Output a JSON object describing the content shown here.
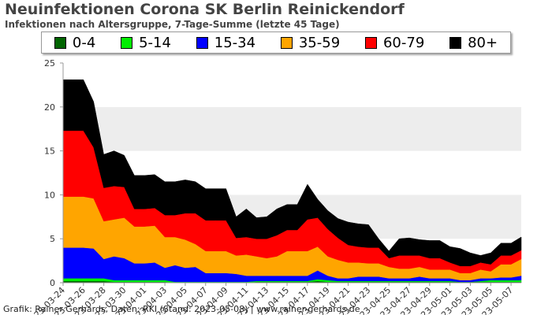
{
  "header": {
    "title": "Neuinfektionen Corona SK Berlin Reinickendorf",
    "subtitle": "Infektionen nach Altersgruppe, 7-Tage-Summe (letzte 45 Tage)"
  },
  "footer": "Grafik: Rainer Gerhards, Daten: RKI (Stand: 2023-05-08) | www.rainer-gerhards.de",
  "chart_data": {
    "type": "area",
    "stacked": true,
    "legend_position": "top",
    "grid": true,
    "ylim": [
      0,
      25
    ],
    "yticks": [
      0,
      5,
      10,
      15,
      20,
      25
    ],
    "x": [
      "2023-03-24",
      "2023-03-25",
      "2023-03-26",
      "2023-03-27",
      "2023-03-28",
      "2023-03-29",
      "2023-03-30",
      "2023-03-31",
      "2023-04-01",
      "2023-04-02",
      "2023-04-03",
      "2023-04-04",
      "2023-04-05",
      "2023-04-06",
      "2023-04-07",
      "2023-04-08",
      "2023-04-09",
      "2023-04-10",
      "2023-04-11",
      "2023-04-12",
      "2023-04-13",
      "2023-04-14",
      "2023-04-15",
      "2023-04-16",
      "2023-04-17",
      "2023-04-18",
      "2023-04-19",
      "2023-04-20",
      "2023-04-21",
      "2023-04-22",
      "2023-04-23",
      "2023-04-24",
      "2023-04-25",
      "2023-04-26",
      "2023-04-27",
      "2023-04-28",
      "2023-04-29",
      "2023-04-30",
      "2023-05-01",
      "2023-05-02",
      "2023-05-03",
      "2023-05-04",
      "2023-05-05",
      "2023-05-06",
      "2023-05-07",
      "2023-05-08"
    ],
    "xtick_labels": [
      "23-03-24",
      "23-03-26",
      "23-03-28",
      "23-03-30",
      "23-04-01",
      "23-04-03",
      "23-04-05",
      "23-04-07",
      "23-04-09",
      "23-04-11",
      "23-04-13",
      "23-04-15",
      "23-04-17",
      "23-04-19",
      "23-04-21",
      "23-04-23",
      "23-04-25",
      "23-04-27",
      "23-04-29",
      "23-05-01",
      "23-05-03",
      "23-05-05",
      "23-05-07"
    ],
    "series": [
      {
        "name": "0-4",
        "color": "#006400",
        "values": [
          0.2,
          0.2,
          0.2,
          0.2,
          0.2,
          0.1,
          0.1,
          0.1,
          0.1,
          0.1,
          0.1,
          0,
          0,
          0,
          0,
          0,
          0,
          0,
          0,
          0.1,
          0.1,
          0.1,
          0.1,
          0.1,
          0.1,
          0.2,
          0.1,
          0.1,
          0.1,
          0.1,
          0.1,
          0.1,
          0.1,
          0.1,
          0.1,
          0.1,
          0.1,
          0.1,
          0.1,
          0.1,
          0.1,
          0.1,
          0.1,
          0.1,
          0.1,
          0.1
        ]
      },
      {
        "name": "5-14",
        "color": "#00ee00",
        "values": [
          0.3,
          0.3,
          0.3,
          0.3,
          0.3,
          0.2,
          0.2,
          0.2,
          0.2,
          0.2,
          0.2,
          0.1,
          0.1,
          0.1,
          0.1,
          0.1,
          0.1,
          0.1,
          0.1,
          0.1,
          0.1,
          0.1,
          0.1,
          0.1,
          0.1,
          0.2,
          0.2,
          0.1,
          0.1,
          0.1,
          0.1,
          0.1,
          0.1,
          0.1,
          0.1,
          0.1,
          0.1,
          0.1,
          0.1,
          0,
          0,
          0.1,
          0.2,
          0.2,
          0.2,
          0.2
        ]
      },
      {
        "name": "15-34",
        "color": "#0000ff",
        "values": [
          3.5,
          3.5,
          3.5,
          3.4,
          2.2,
          2.7,
          2.5,
          1.9,
          1.9,
          2.0,
          1.4,
          1.9,
          1.6,
          1.7,
          1.0,
          1.0,
          1.0,
          0.9,
          0.7,
          0.6,
          0.6,
          0.6,
          0.6,
          0.6,
          0.6,
          1.0,
          0.5,
          0.3,
          0.3,
          0.5,
          0.5,
          0.5,
          0.3,
          0.3,
          0.3,
          0.5,
          0.3,
          0.3,
          0.3,
          0.2,
          0.2,
          0.3,
          0.2,
          0.3,
          0.3,
          0.5
        ]
      },
      {
        "name": "35-59",
        "color": "#ffa500",
        "values": [
          5.8,
          5.8,
          5.8,
          5.7,
          4.3,
          4.2,
          4.6,
          4.2,
          4.2,
          4.2,
          3.5,
          3.2,
          3.2,
          2.6,
          2.5,
          2.5,
          2.5,
          2.1,
          2.4,
          2.2,
          2.0,
          2.2,
          2.8,
          2.8,
          2.8,
          2.7,
          2.2,
          2.1,
          1.8,
          1.6,
          1.5,
          1.5,
          1.3,
          1.1,
          1.1,
          1.1,
          1.0,
          1.0,
          1.0,
          0.8,
          0.8,
          1.0,
          0.8,
          1.5,
          1.5,
          1.9
        ]
      },
      {
        "name": "60-79",
        "color": "#ff0000",
        "values": [
          7.5,
          7.5,
          7.5,
          5.8,
          3.8,
          3.8,
          3.5,
          2.0,
          2.0,
          2.0,
          2.5,
          2.5,
          3.0,
          3.5,
          3.5,
          3.5,
          3.5,
          2.0,
          2.0,
          2.0,
          2.2,
          2.4,
          2.4,
          2.4,
          3.6,
          3.3,
          3.1,
          2.5,
          2.0,
          1.8,
          1.8,
          1.8,
          1.0,
          1.5,
          1.5,
          1.3,
          1.3,
          1.3,
          0.8,
          0.8,
          0.8,
          0.8,
          0.8,
          1.0,
          1.0,
          1.0
        ]
      },
      {
        "name": "80+",
        "color": "#000000",
        "values": [
          5.8,
          5.8,
          5.8,
          5.2,
          3.8,
          4.0,
          3.6,
          3.8,
          3.8,
          3.8,
          3.8,
          3.8,
          3.8,
          3.6,
          3.6,
          3.6,
          3.6,
          2.4,
          3.2,
          2.4,
          2.5,
          3.0,
          2.9,
          2.9,
          4.0,
          2.1,
          2.1,
          2.2,
          2.6,
          2.6,
          2.6,
          1.0,
          0.8,
          1.9,
          2.0,
          1.8,
          2.0,
          2.0,
          1.8,
          2.0,
          1.5,
          0.8,
          1.3,
          1.4,
          1.4,
          1.5
        ]
      }
    ]
  }
}
